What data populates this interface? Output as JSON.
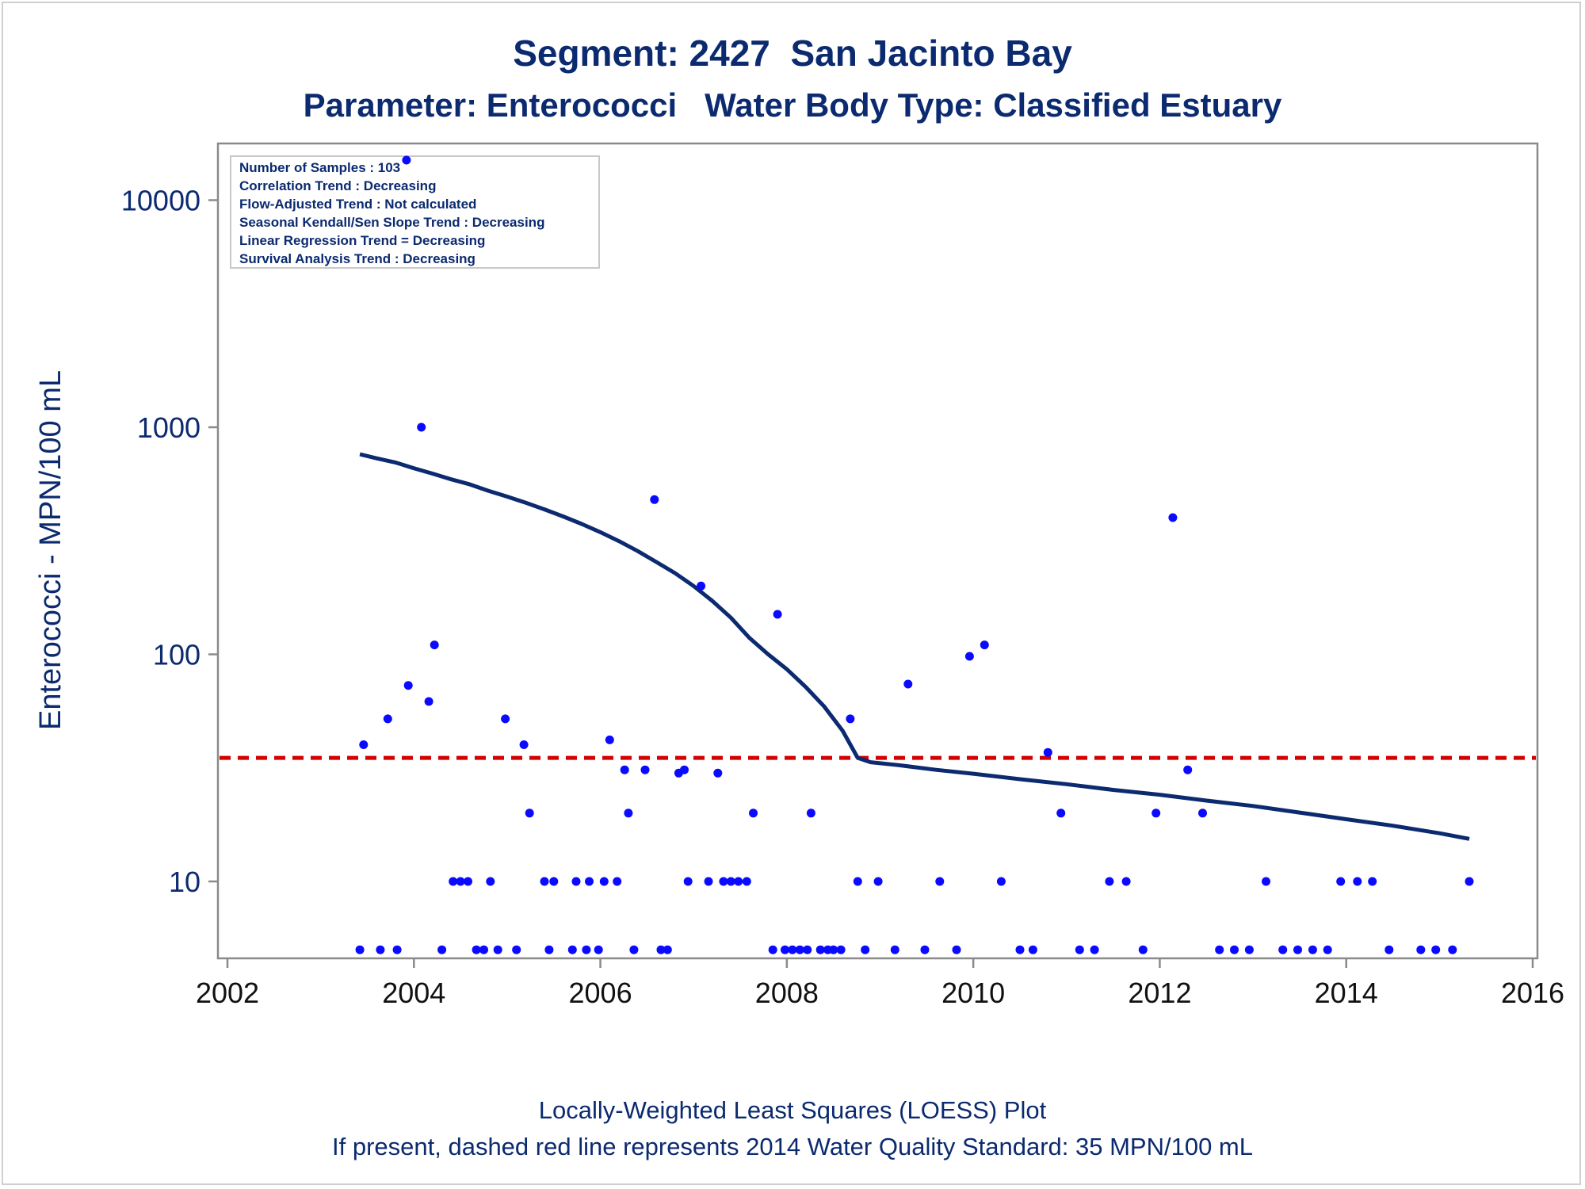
{
  "chart_data": {
    "type": "scatter",
    "title": "Segment: 2427  San Jacinto Bay",
    "subtitle": "Parameter: Enterococci   Water Body Type: Classified Estuary",
    "xlabel": "",
    "ylabel": "Enterococci - MPN/100 mL",
    "xlim": [
      2002,
      2016
    ],
    "ylim": [
      4.7,
      17000
    ],
    "yscale": "log",
    "xticks": [
      2002,
      2004,
      2006,
      2008,
      2010,
      2012,
      2014,
      2016
    ],
    "yticks": [
      10,
      100,
      1000,
      10000
    ],
    "grid": false,
    "stats_box": [
      "Number of Samples : 103",
      "Correlation Trend : Decreasing",
      "Flow-Adjusted Trend : Not calculated",
      "Seasonal Kendall/Sen Slope Trend : Decreasing",
      "Linear Regression Trend = Decreasing",
      "Survival Analysis Trend : Decreasing"
    ],
    "reference_line": {
      "y": 35,
      "color": "#d40000",
      "style": "dashed"
    },
    "footnotes": [
      "Locally-Weighted Least Squares (LOESS) Plot",
      "If present, dashed red line represents 2014 Water Quality Standard: 35 MPN/100 mL"
    ],
    "series": [
      {
        "type": "scatter",
        "color": "#0a0aff",
        "points": [
          [
            2003.42,
            5
          ],
          [
            2003.64,
            5
          ],
          [
            2003.82,
            5
          ],
          [
            2004.3,
            5
          ],
          [
            2004.67,
            5
          ],
          [
            2004.75,
            5
          ],
          [
            2004.9,
            5
          ],
          [
            2005.1,
            5
          ],
          [
            2005.45,
            5
          ],
          [
            2005.7,
            5
          ],
          [
            2005.85,
            5
          ],
          [
            2005.98,
            5
          ],
          [
            2006.36,
            5
          ],
          [
            2006.65,
            5
          ],
          [
            2006.72,
            5
          ],
          [
            2007.85,
            5
          ],
          [
            2007.98,
            5
          ],
          [
            2008.06,
            5
          ],
          [
            2008.14,
            5
          ],
          [
            2008.22,
            5
          ],
          [
            2008.36,
            5
          ],
          [
            2008.44,
            5
          ],
          [
            2008.5,
            5
          ],
          [
            2008.58,
            5
          ],
          [
            2008.84,
            5
          ],
          [
            2009.16,
            5
          ],
          [
            2009.48,
            5
          ],
          [
            2009.82,
            5
          ],
          [
            2010.5,
            5
          ],
          [
            2010.64,
            5
          ],
          [
            2011.14,
            5
          ],
          [
            2011.3,
            5
          ],
          [
            2011.82,
            5
          ],
          [
            2012.64,
            5
          ],
          [
            2012.8,
            5
          ],
          [
            2012.96,
            5
          ],
          [
            2013.32,
            5
          ],
          [
            2013.48,
            5
          ],
          [
            2013.64,
            5
          ],
          [
            2013.8,
            5
          ],
          [
            2014.46,
            5
          ],
          [
            2014.8,
            5
          ],
          [
            2014.96,
            5
          ],
          [
            2015.14,
            5
          ],
          [
            2004.42,
            10
          ],
          [
            2004.5,
            10
          ],
          [
            2004.58,
            10
          ],
          [
            2004.82,
            10
          ],
          [
            2005.4,
            10
          ],
          [
            2005.5,
            10
          ],
          [
            2005.74,
            10
          ],
          [
            2005.88,
            10
          ],
          [
            2006.04,
            10
          ],
          [
            2006.18,
            10
          ],
          [
            2006.94,
            10
          ],
          [
            2007.16,
            10
          ],
          [
            2007.32,
            10
          ],
          [
            2007.4,
            10
          ],
          [
            2007.48,
            10
          ],
          [
            2007.57,
            10
          ],
          [
            2008.76,
            10
          ],
          [
            2008.98,
            10
          ],
          [
            2009.64,
            10
          ],
          [
            2010.3,
            10
          ],
          [
            2011.46,
            10
          ],
          [
            2011.64,
            10
          ],
          [
            2013.14,
            10
          ],
          [
            2013.94,
            10
          ],
          [
            2014.12,
            10
          ],
          [
            2014.28,
            10
          ],
          [
            2015.32,
            10
          ],
          [
            2003.46,
            40
          ],
          [
            2003.72,
            52
          ],
          [
            2003.94,
            73
          ],
          [
            2003.92,
            15000
          ],
          [
            2004.08,
            1000
          ],
          [
            2004.16,
            62
          ],
          [
            2004.22,
            110
          ],
          [
            2004.98,
            52
          ],
          [
            2005.18,
            40
          ],
          [
            2005.24,
            20
          ],
          [
            2006.1,
            42
          ],
          [
            2006.26,
            31
          ],
          [
            2006.3,
            20
          ],
          [
            2006.48,
            31
          ],
          [
            2006.58,
            480
          ],
          [
            2006.84,
            30
          ],
          [
            2006.9,
            31
          ],
          [
            2007.08,
            200
          ],
          [
            2007.26,
            30
          ],
          [
            2007.64,
            20
          ],
          [
            2007.9,
            150
          ],
          [
            2008.26,
            20
          ],
          [
            2008.68,
            52
          ],
          [
            2009.3,
            74
          ],
          [
            2009.96,
            98
          ],
          [
            2010.12,
            110
          ],
          [
            2010.8,
            37
          ],
          [
            2010.94,
            20
          ],
          [
            2011.96,
            20
          ],
          [
            2012.14,
            400
          ],
          [
            2012.3,
            31
          ],
          [
            2012.46,
            20
          ]
        ]
      },
      {
        "type": "line",
        "color": "#0b2a6f",
        "points": [
          [
            2003.42,
            760
          ],
          [
            2003.6,
            730
          ],
          [
            2003.8,
            700
          ],
          [
            2004.0,
            660
          ],
          [
            2004.2,
            625
          ],
          [
            2004.4,
            590
          ],
          [
            2004.6,
            560
          ],
          [
            2004.8,
            525
          ],
          [
            2005.0,
            495
          ],
          [
            2005.2,
            465
          ],
          [
            2005.4,
            435
          ],
          [
            2005.6,
            405
          ],
          [
            2005.8,
            375
          ],
          [
            2006.0,
            345
          ],
          [
            2006.2,
            315
          ],
          [
            2006.4,
            285
          ],
          [
            2006.6,
            255
          ],
          [
            2006.8,
            228
          ],
          [
            2007.0,
            200
          ],
          [
            2007.2,
            172
          ],
          [
            2007.4,
            145
          ],
          [
            2007.6,
            118
          ],
          [
            2007.8,
            100
          ],
          [
            2008.0,
            86
          ],
          [
            2008.2,
            72
          ],
          [
            2008.4,
            59
          ],
          [
            2008.6,
            46
          ],
          [
            2008.76,
            35
          ],
          [
            2008.9,
            33.5
          ],
          [
            2009.2,
            32.5
          ],
          [
            2009.6,
            31
          ],
          [
            2010.0,
            29.8
          ],
          [
            2010.5,
            28.2
          ],
          [
            2011.0,
            26.8
          ],
          [
            2011.5,
            25.3
          ],
          [
            2012.0,
            24.1
          ],
          [
            2012.5,
            22.7
          ],
          [
            2013.0,
            21.5
          ],
          [
            2013.5,
            20.1
          ],
          [
            2014.0,
            18.8
          ],
          [
            2014.5,
            17.6
          ],
          [
            2015.0,
            16.3
          ],
          [
            2015.32,
            15.4
          ]
        ]
      }
    ]
  }
}
